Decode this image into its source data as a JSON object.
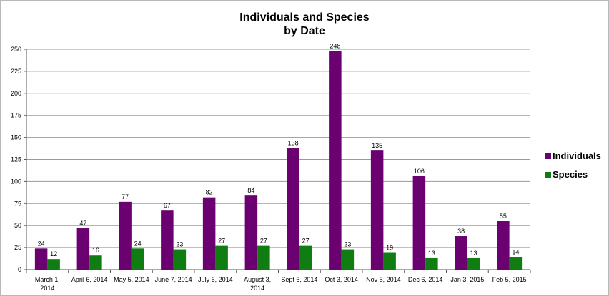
{
  "chart_data": {
    "type": "bar",
    "title": [
      "Individuals and Species",
      "by Date"
    ],
    "xlabel": "",
    "ylabel": "",
    "ylim": [
      0,
      250
    ],
    "yticks": [
      0,
      25,
      50,
      75,
      100,
      125,
      150,
      175,
      200,
      225,
      250
    ],
    "grid": true,
    "legend_position": "right",
    "categories": [
      [
        "March 1,",
        "2014"
      ],
      [
        "April 6, 2014"
      ],
      [
        "May 5, 2014"
      ],
      [
        "June 7, 2014"
      ],
      [
        "July 6, 2014"
      ],
      [
        "August 3,",
        "2014"
      ],
      [
        "Sept 6, 2014"
      ],
      [
        "Oct 3, 2014"
      ],
      [
        "Nov 5, 2014"
      ],
      [
        "Dec 6, 2014"
      ],
      [
        "Jan 3, 2015"
      ],
      [
        "Feb 5, 2015"
      ]
    ],
    "series": [
      {
        "name": "Individuals",
        "color": "#6b0070",
        "values": [
          24,
          47,
          77,
          67,
          82,
          84,
          138,
          248,
          135,
          106,
          38,
          55
        ]
      },
      {
        "name": "Species",
        "color": "#0f7d12",
        "values": [
          12,
          16,
          24,
          23,
          27,
          27,
          27,
          23,
          19,
          13,
          13,
          14
        ]
      }
    ]
  }
}
